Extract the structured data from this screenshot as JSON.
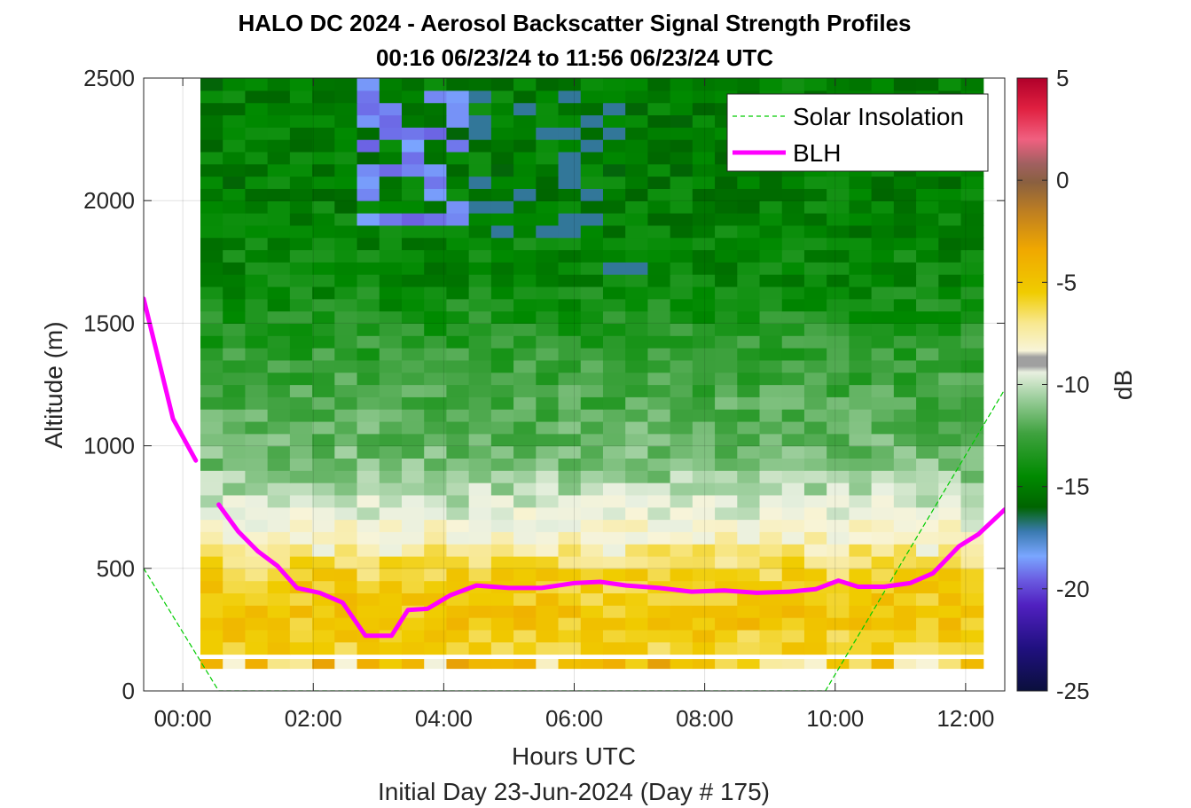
{
  "chart_data": {
    "type": "heatmap",
    "title": "HALO DC 2024 - Aerosol Backscatter Signal Strength Profiles",
    "subtitle": "00:16 06/23/24 to 11:56 06/23/24  UTC",
    "xlabel": "Hours UTC",
    "ylabel": "Altitude (m)",
    "footer": "Initial Day 23-Jun-2024 (Day # 175)",
    "colorbar_label": "dB",
    "xlim": [
      -0.6,
      12.6
    ],
    "ylim": [
      0,
      2500
    ],
    "clim": [
      -25,
      5
    ],
    "x_ticks": [
      0,
      2,
      4,
      6,
      8,
      10,
      12
    ],
    "x_tick_labels": [
      "00:00",
      "02:00",
      "04:00",
      "06:00",
      "08:00",
      "10:00",
      "12:00"
    ],
    "y_ticks": [
      0,
      500,
      1000,
      1500,
      2000,
      2500
    ],
    "y_tick_labels": [
      "0",
      "500",
      "1000",
      "1500",
      "2000",
      "2500"
    ],
    "colorbar_ticks": [
      5,
      0,
      -5,
      -10,
      -15,
      -20,
      -25
    ],
    "colorbar_tick_labels": [
      "5",
      "0",
      "-5",
      "-10",
      "-15",
      "-20",
      "-25"
    ],
    "grid": true,
    "legend_position": "top-right",
    "heatmap_extent": {
      "x": [
        0.27,
        12.27
      ],
      "y": [
        0,
        2500
      ]
    },
    "heatmap_rows": 50,
    "heatmap_cols": 35,
    "layer_profile_db": [
      {
        "alt": 0,
        "db": -7
      },
      {
        "alt": 130,
        "db": -7
      },
      {
        "alt": 150,
        "db": -7
      },
      {
        "alt": 300,
        "db": -6
      },
      {
        "alt": 500,
        "db": -7
      },
      {
        "alt": 560,
        "db": -8
      },
      {
        "alt": 620,
        "db": -9
      },
      {
        "alt": 700,
        "db": -10
      },
      {
        "alt": 800,
        "db": -11
      },
      {
        "alt": 900,
        "db": -12
      },
      {
        "alt": 1100,
        "db": -13
      },
      {
        "alt": 1400,
        "db": -14
      },
      {
        "alt": 1700,
        "db": -15.5
      },
      {
        "alt": 2100,
        "db": -16
      },
      {
        "alt": 2500,
        "db": -16
      }
    ],
    "series": [
      {
        "name": "Solar Insolation",
        "color": "#00cc00",
        "style": "dashed",
        "x": [
          -0.6,
          0.55,
          9.85,
          12.6
        ],
        "y": [
          500,
          0,
          0,
          1230
        ]
      },
      {
        "name": "BLH",
        "color": "#ff00ff",
        "style": "solid",
        "segments": [
          {
            "x": [
              -0.6,
              -0.15,
              0.2
            ],
            "y": [
              1600,
              1110,
              940
            ]
          },
          {
            "x": [
              0.55,
              0.85,
              1.15,
              1.45,
              1.75,
              2.1,
              2.45,
              2.8,
              3.2,
              3.45,
              3.75,
              4.1,
              4.5,
              5.0,
              5.5,
              6.0,
              6.4,
              6.8,
              7.3,
              7.8,
              8.3,
              8.8,
              9.3,
              9.7,
              10.05,
              10.35,
              10.75,
              11.15,
              11.5,
              11.9,
              12.2,
              12.6
            ],
            "y": [
              760,
              650,
              570,
              510,
              420,
              400,
              360,
              225,
              225,
              330,
              335,
              390,
              430,
              420,
              420,
              440,
              445,
              430,
              420,
              405,
              410,
              400,
              405,
              415,
              450,
              425,
              425,
              440,
              480,
              590,
              640,
              740
            ]
          }
        ]
      }
    ]
  }
}
